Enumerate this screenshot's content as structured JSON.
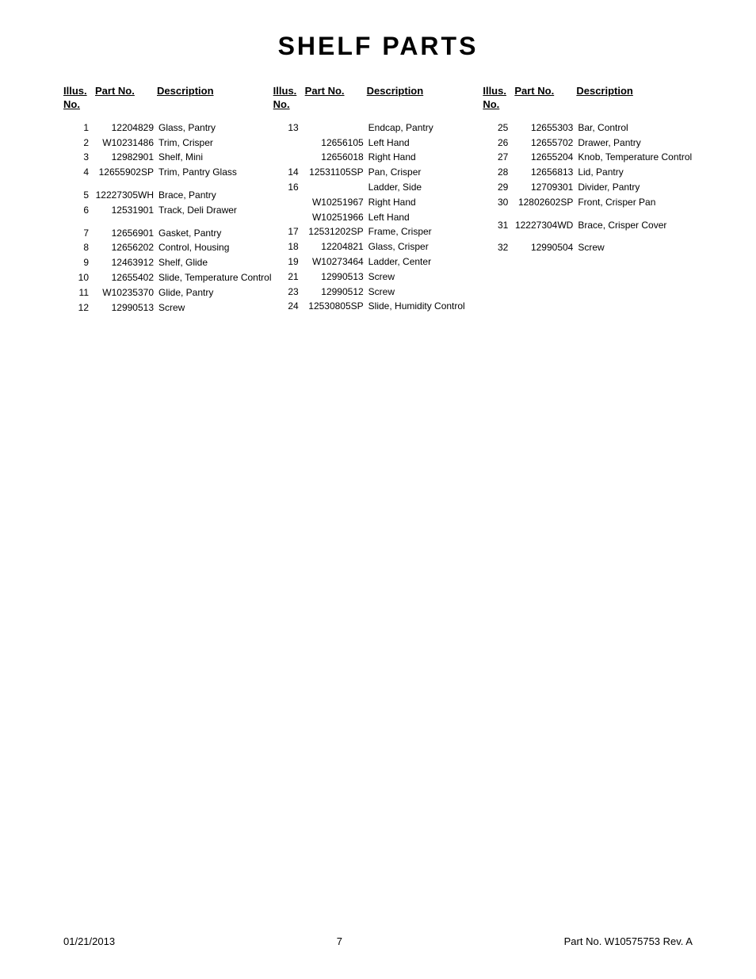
{
  "title": "SHELF PARTS",
  "headers": {
    "illus1": "Illus.",
    "illus2": "No.",
    "part": "Part No.",
    "desc": "Description"
  },
  "col1": [
    {
      "n": "1",
      "p": "12204829",
      "d": "Glass, Pantry"
    },
    {
      "n": "2",
      "p": "W10231486",
      "d": "Trim, Crisper"
    },
    {
      "n": "3",
      "p": "12982901",
      "d": "Shelf, Mini"
    },
    {
      "n": "4",
      "p": "12655902SP",
      "d": "Trim, Pantry Glass"
    },
    {
      "gap": true
    },
    {
      "n": "5",
      "p": "12227305WH",
      "d": "Brace, Pantry"
    },
    {
      "n": "6",
      "p": "12531901",
      "d": "Track, Deli Drawer"
    },
    {
      "gap": true
    },
    {
      "n": "7",
      "p": "12656901",
      "d": "Gasket, Pantry"
    },
    {
      "n": "8",
      "p": "12656202",
      "d": "Control, Housing"
    },
    {
      "n": "9",
      "p": "12463912",
      "d": "Shelf, Glide"
    },
    {
      "n": "10",
      "p": "12655402",
      "d": "Slide, Temperature Control"
    },
    {
      "n": "11",
      "p": "W10235370",
      "d": "Glide, Pantry"
    },
    {
      "n": "12",
      "p": "12990513",
      "d": "Screw"
    }
  ],
  "col2": [
    {
      "n": "13",
      "p": "",
      "d": "Endcap, Pantry"
    },
    {
      "n": "",
      "p": "12656105",
      "d": "Left Hand"
    },
    {
      "n": "",
      "p": "12656018",
      "d": "Right Hand"
    },
    {
      "n": "14",
      "p": "12531105SP",
      "d": "Pan, Crisper"
    },
    {
      "n": "16",
      "p": "",
      "d": "Ladder, Side"
    },
    {
      "n": "",
      "p": "W10251967",
      "d": "Right Hand"
    },
    {
      "n": "",
      "p": "W10251966",
      "d": "Left Hand"
    },
    {
      "n": "17",
      "p": "12531202SP",
      "d": "Frame, Crisper"
    },
    {
      "n": "18",
      "p": "12204821",
      "d": "Glass, Crisper"
    },
    {
      "n": "19",
      "p": "W10273464",
      "d": "Ladder, Center"
    },
    {
      "n": "21",
      "p": "12990513",
      "d": "Screw"
    },
    {
      "n": "23",
      "p": "12990512",
      "d": "Screw"
    },
    {
      "n": "24",
      "p": "12530805SP",
      "d": "Slide, Humidity Control"
    }
  ],
  "col3": [
    {
      "n": "25",
      "p": "12655303",
      "d": "Bar, Control"
    },
    {
      "n": "26",
      "p": "12655702",
      "d": "Drawer, Pantry"
    },
    {
      "n": "27",
      "p": "12655204",
      "d": "Knob, Temperature Control"
    },
    {
      "n": "28",
      "p": "12656813",
      "d": "Lid, Pantry"
    },
    {
      "n": "29",
      "p": "12709301",
      "d": "Divider, Pantry"
    },
    {
      "n": "30",
      "p": "12802602SP",
      "d": "Front, Crisper Pan"
    },
    {
      "gap": true
    },
    {
      "n": "31",
      "p": "12227304WD",
      "d": "Brace, Crisper Cover"
    },
    {
      "gap": true
    },
    {
      "n": "32",
      "p": "12990504",
      "d": "Screw"
    }
  ],
  "footer": {
    "date": "01/21/2013",
    "page": "7",
    "rev": "Part No.  W10575753  Rev.  A"
  }
}
